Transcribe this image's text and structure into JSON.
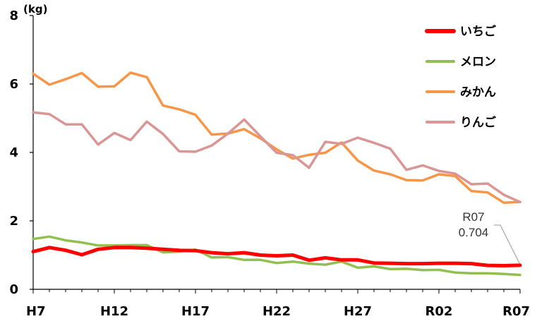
{
  "chart_data": {
    "type": "line",
    "title": "",
    "unit": "(kg)",
    "ylim": [
      0,
      8
    ],
    "yticks": [
      0,
      2,
      4,
      6,
      8
    ],
    "x": [
      "H7",
      "H8",
      "H9",
      "H10",
      "H11",
      "H12",
      "H13",
      "H14",
      "H15",
      "H16",
      "H17",
      "H18",
      "H19",
      "H20",
      "H21",
      "H22",
      "H23",
      "H24",
      "H25",
      "H26",
      "H27",
      "H28",
      "H29",
      "H30",
      "R01",
      "R02",
      "R03",
      "R04",
      "R05",
      "R06",
      "R07"
    ],
    "xticks": [
      "H7",
      "H12",
      "H17",
      "H22",
      "H27",
      "R02",
      "R07"
    ],
    "grid": false,
    "legend_position": "top-right",
    "series": [
      {
        "name": "いちご",
        "color": "#ff0000",
        "values": [
          1.1,
          1.22,
          1.14,
          1.01,
          1.17,
          1.22,
          1.22,
          1.2,
          1.17,
          1.14,
          1.13,
          1.07,
          1.04,
          1.07,
          1.0,
          0.98,
          1.0,
          0.85,
          0.92,
          0.86,
          0.86,
          0.77,
          0.76,
          0.75,
          0.75,
          0.76,
          0.76,
          0.75,
          0.7,
          0.69,
          0.704
        ]
      },
      {
        "name": "メロン",
        "color": "#92c050",
        "values": [
          1.47,
          1.54,
          1.43,
          1.37,
          1.28,
          1.28,
          1.29,
          1.29,
          1.08,
          1.1,
          1.16,
          0.93,
          0.94,
          0.86,
          0.86,
          0.77,
          0.81,
          0.75,
          0.72,
          0.81,
          0.63,
          0.67,
          0.59,
          0.6,
          0.56,
          0.57,
          0.49,
          0.47,
          0.47,
          0.45,
          0.42
        ]
      },
      {
        "name": "みかん",
        "color": "#f79646",
        "values": [
          6.3,
          5.98,
          6.14,
          6.32,
          5.92,
          5.93,
          6.33,
          6.2,
          5.37,
          5.26,
          5.1,
          4.52,
          4.55,
          4.68,
          4.41,
          4.09,
          3.82,
          3.93,
          3.99,
          4.29,
          3.76,
          3.47,
          3.36,
          3.19,
          3.18,
          3.36,
          3.31,
          2.87,
          2.83,
          2.53,
          2.55
        ]
      },
      {
        "name": "りんご",
        "color": "#d99694",
        "values": [
          5.17,
          5.12,
          4.82,
          4.82,
          4.23,
          4.57,
          4.36,
          4.9,
          4.54,
          4.03,
          4.02,
          4.2,
          4.55,
          4.96,
          4.47,
          3.99,
          3.92,
          3.55,
          4.31,
          4.25,
          4.43,
          4.28,
          4.11,
          3.49,
          3.62,
          3.46,
          3.38,
          3.07,
          3.09,
          2.76,
          2.55
        ]
      }
    ],
    "annotations": [
      {
        "series": "いちご",
        "x": "R07",
        "label_line1": "R07",
        "label_line2": "0.704",
        "value": 0.704
      }
    ]
  }
}
